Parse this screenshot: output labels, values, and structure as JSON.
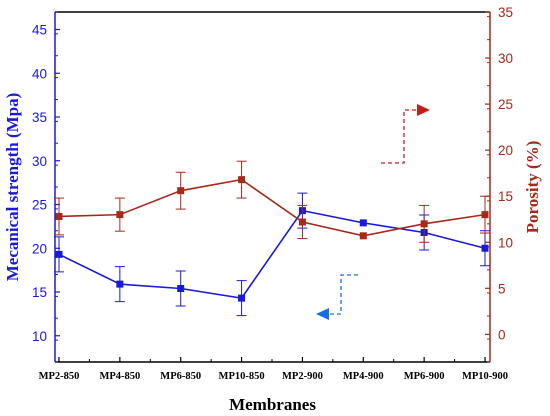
{
  "chart_data": {
    "type": "line",
    "xlabel": "Membranes",
    "ylabel_left": "Mecanical strength (Mpa)",
    "ylabel_right": "Porosity (%)",
    "categories": [
      "MP2-850",
      "MP4-850",
      "MP6-850",
      "MP10-850",
      "MP2-900",
      "MP4-900",
      "MP6-900",
      "MP10-900"
    ],
    "ylim_left": [
      7,
      47
    ],
    "ylim_right": [
      -3,
      35
    ],
    "yticks_left": [
      10,
      15,
      20,
      25,
      30,
      35,
      40,
      45
    ],
    "yticks_right": [
      0,
      5,
      10,
      15,
      20,
      25,
      30,
      35
    ],
    "grid": false,
    "series": [
      {
        "axis": "left",
        "color": "#1a1adb",
        "marker": "square",
        "values": [
          19.3,
          15.9,
          15.4,
          14.3,
          24.3,
          22.9,
          21.8,
          20.0
        ],
        "errors": [
          2.0,
          2.0,
          2.0,
          2.0,
          2.0,
          0,
          2.0,
          2.0
        ]
      },
      {
        "axis": "right",
        "color": "#a52a1a",
        "marker": "square",
        "values": [
          12.8,
          13.0,
          15.6,
          16.8,
          12.2,
          10.7,
          12.0,
          13.0
        ],
        "errors": [
          2.0,
          1.8,
          2.0,
          2.0,
          1.8,
          0,
          2.0,
          2.0
        ]
      }
    ],
    "annotations": [
      {
        "type": "arrow",
        "direction": "left",
        "color": "#1a6ee0",
        "points_to": "left axis"
      },
      {
        "type": "arrow",
        "direction": "right",
        "color": "#c0201a",
        "points_to": "right axis"
      }
    ]
  },
  "colors": {
    "left_axis": "#1a1adb",
    "right_axis": "#a52a1a",
    "blue_arrow": "#1a6ee0",
    "red_arrow": "#c0201a"
  }
}
